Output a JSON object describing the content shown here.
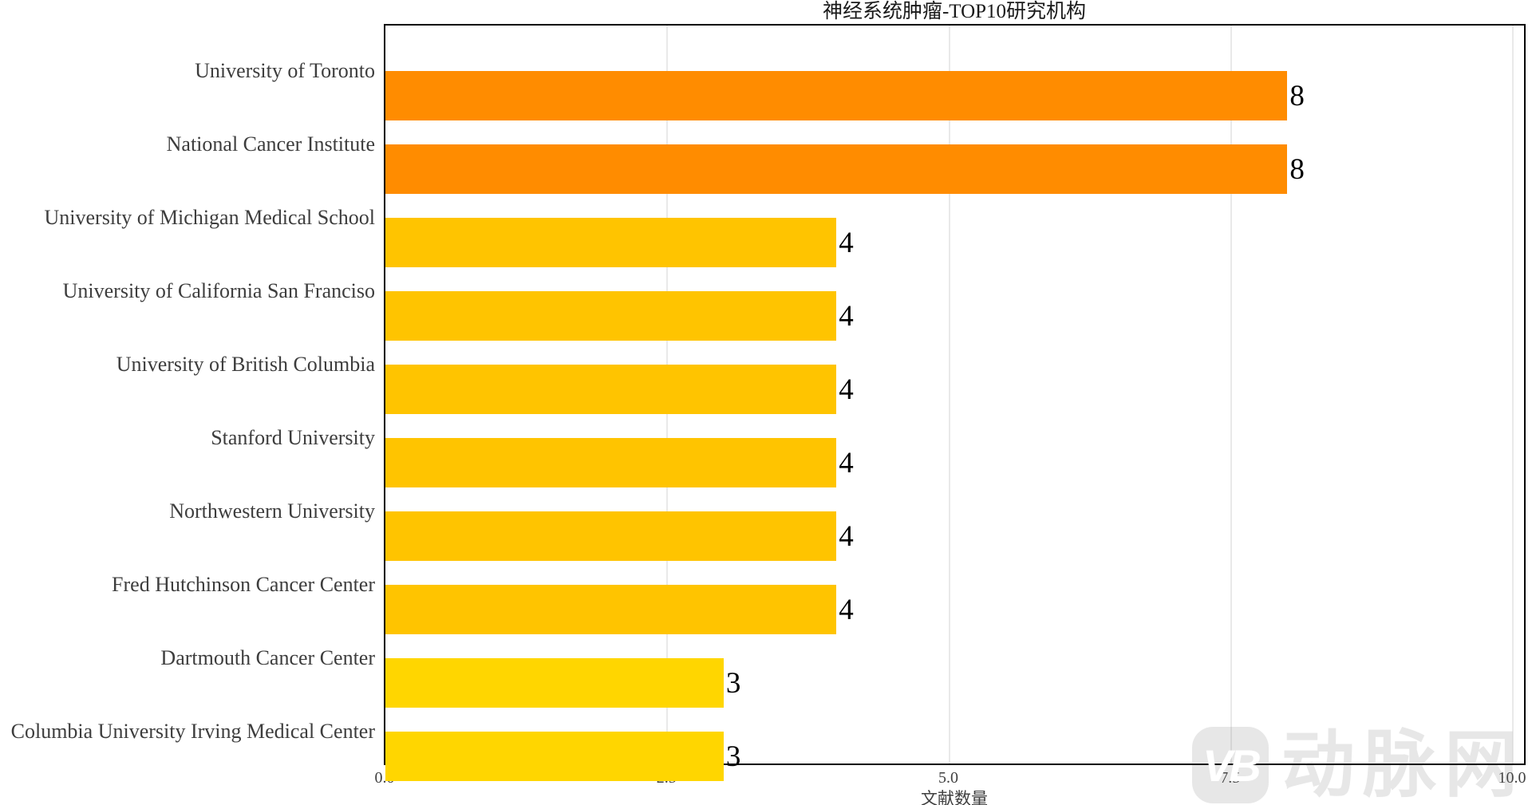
{
  "title": "神经系统肿瘤-TOP10研究机构",
  "chart_data": {
    "type": "bar",
    "orientation": "horizontal",
    "title": "神经系统肿瘤-TOP10研究机构",
    "xlabel": "文献数量",
    "ylabel": "",
    "categories": [
      "University of Toronto",
      "National Cancer Institute",
      "University of Michigan Medical School",
      "University of California San Franciso",
      "University of British Columbia",
      "Stanford University",
      "Northwestern University",
      "Fred Hutchinson Cancer Center",
      "Dartmouth Cancer Center",
      "Columbia University Irving Medical Center"
    ],
    "values": [
      8,
      8,
      4,
      4,
      4,
      4,
      4,
      4,
      3,
      3
    ],
    "bar_colors": [
      "#FF8C00",
      "#FF8C00",
      "#FFC400",
      "#FFC400",
      "#FFC400",
      "#FFC400",
      "#FFC400",
      "#FFC400",
      "#FFD600",
      "#FFD600"
    ],
    "value_labels": [
      "8",
      "8",
      "4",
      "4",
      "4",
      "4",
      "4",
      "4",
      "3",
      "3"
    ],
    "xlim": [
      0,
      10.1
    ],
    "xticks": [
      "0.0",
      "2.5",
      "5.0",
      "7.5",
      "10.0"
    ],
    "xtick_values": [
      0,
      2.5,
      5,
      7.5,
      10
    ],
    "grid": "vertical-only",
    "legend": "none",
    "gridline_color": "#e9e9e9",
    "spine_color": "#000000"
  },
  "watermark": {
    "logo_text": "VB",
    "text": "动脉网"
  }
}
